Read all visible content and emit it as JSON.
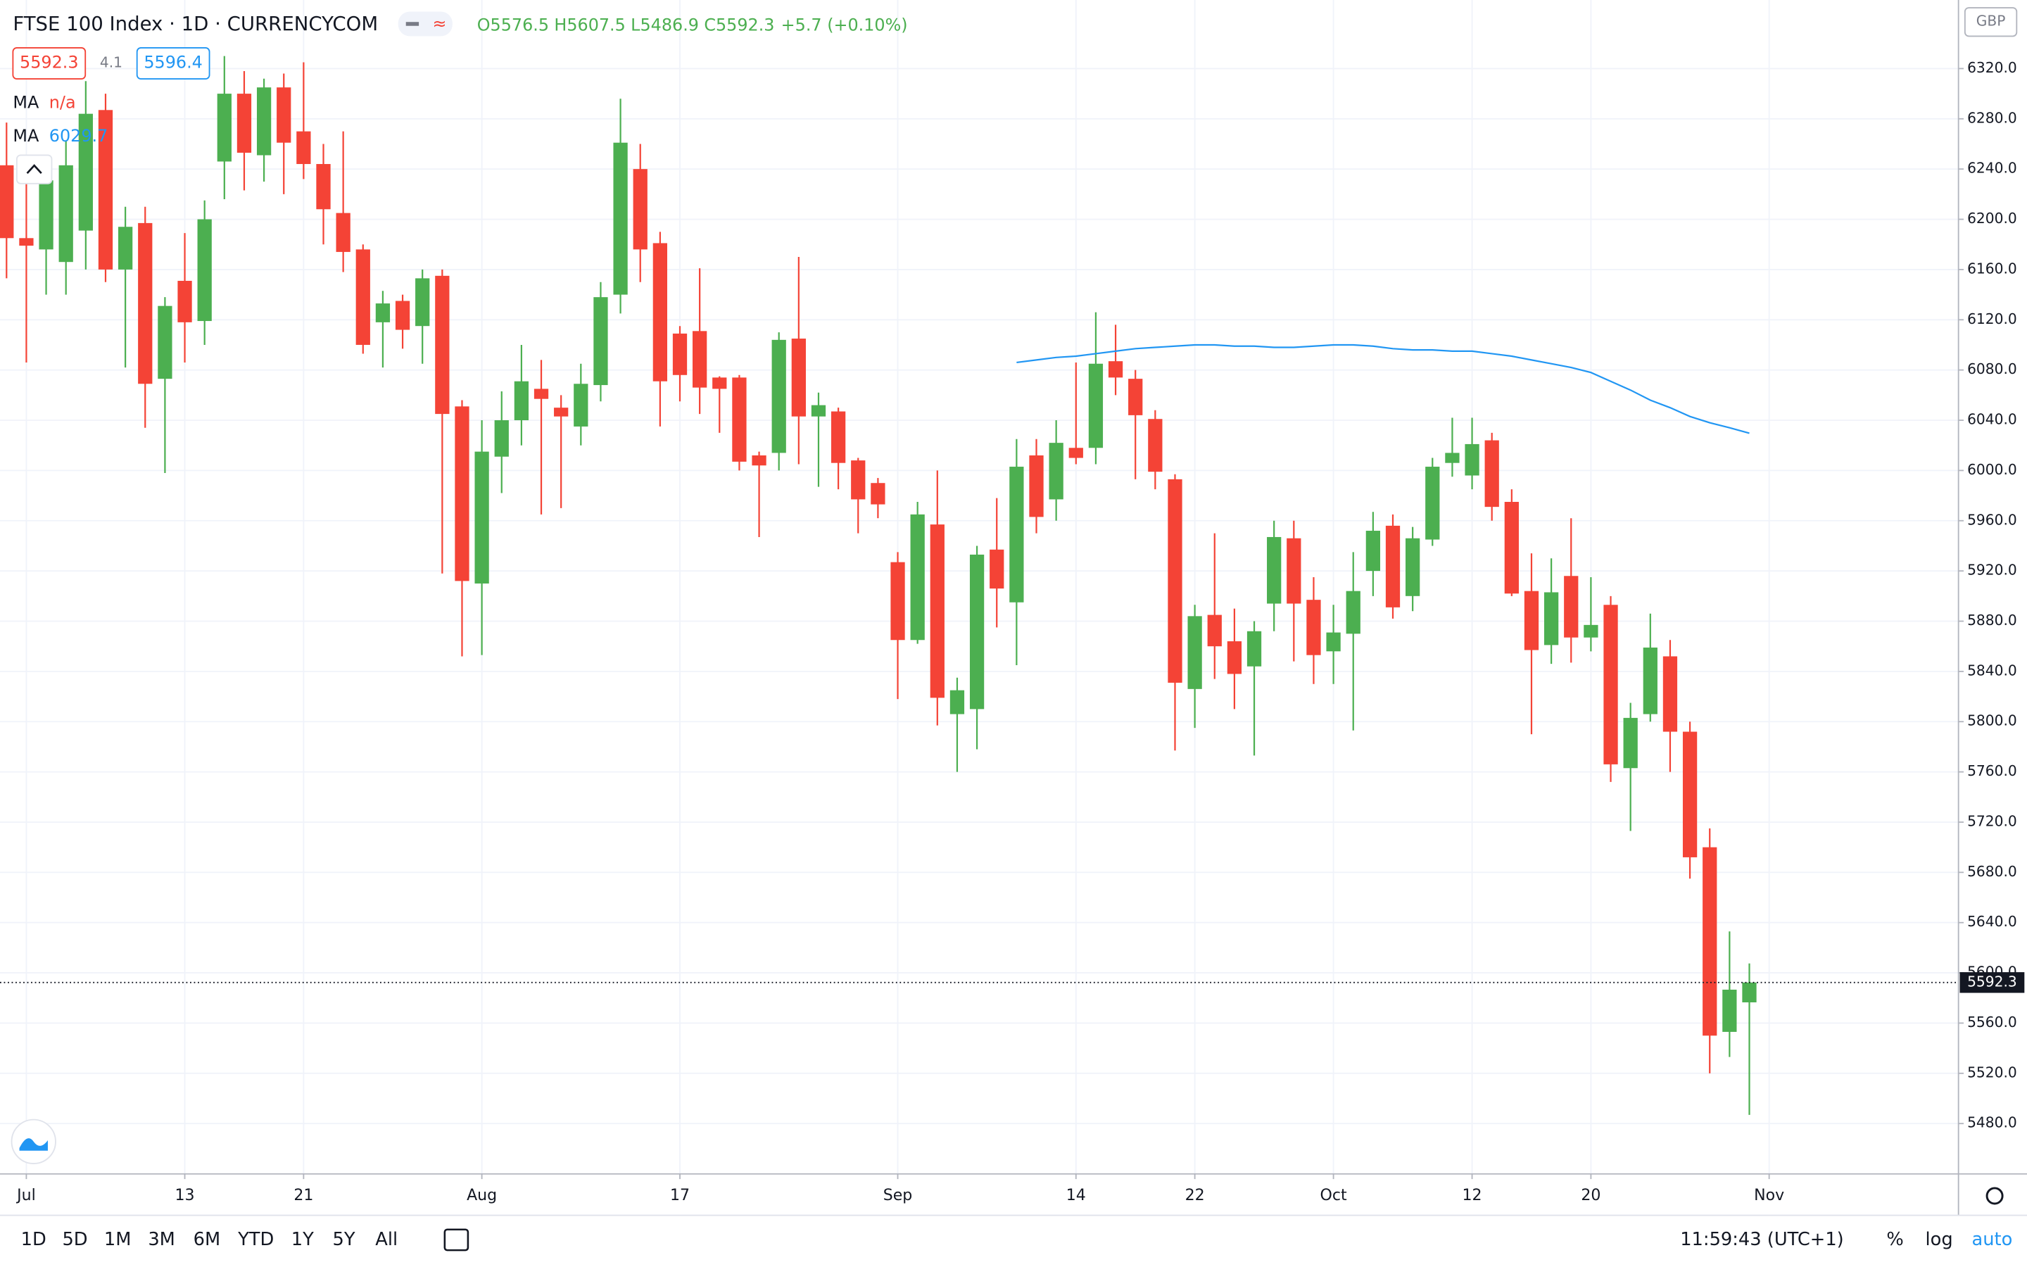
{
  "chart_data": {
    "type": "candlestick",
    "title": "FTSE 100 Index · 1D · CURRENCYCOM",
    "currency": "GBP",
    "up_color": "#4caf50",
    "down_color": "#f44336",
    "xlim": [
      -0.33,
      98.56
    ],
    "xticks": [
      {
        "value": 1,
        "label": "Jul"
      },
      {
        "value": 9,
        "label": "13"
      },
      {
        "value": 15,
        "label": "21"
      },
      {
        "value": 24,
        "label": "Aug"
      },
      {
        "value": 34,
        "label": "17"
      },
      {
        "value": 45,
        "label": "Sep"
      },
      {
        "value": 54,
        "label": "14"
      },
      {
        "value": 60,
        "label": "22"
      },
      {
        "value": 67,
        "label": "Oct"
      },
      {
        "value": 74,
        "label": "12"
      },
      {
        "value": 80,
        "label": "20"
      },
      {
        "value": 89,
        "label": "Nov"
      }
    ],
    "ylim": [
      5439.9,
      6374.6
    ],
    "yticks": [
      {
        "value": 5480,
        "label": "5480.0"
      },
      {
        "value": 5520,
        "label": "5520.0"
      },
      {
        "value": 5560,
        "label": "5560.0"
      },
      {
        "value": 5600,
        "label": "5600.0"
      },
      {
        "value": 5640,
        "label": "5640.0"
      },
      {
        "value": 5680,
        "label": "5680.0"
      },
      {
        "value": 5720,
        "label": "5720.0"
      },
      {
        "value": 5760,
        "label": "5760.0"
      },
      {
        "value": 5800,
        "label": "5800.0"
      },
      {
        "value": 5840,
        "label": "5840.0"
      },
      {
        "value": 5880,
        "label": "5880.0"
      },
      {
        "value": 5920,
        "label": "5920.0"
      },
      {
        "value": 5960,
        "label": "5960.0"
      },
      {
        "value": 6000,
        "label": "6000.0"
      },
      {
        "value": 6040,
        "label": "6040.0"
      },
      {
        "value": 6080,
        "label": "6080.0"
      },
      {
        "value": 6120,
        "label": "6120.0"
      },
      {
        "value": 6160,
        "label": "6160.0"
      },
      {
        "value": 6200,
        "label": "6200.0"
      },
      {
        "value": 6240,
        "label": "6240.0"
      },
      {
        "value": 6280,
        "label": "6280.0"
      },
      {
        "value": 6320,
        "label": "6320.0"
      }
    ],
    "grid": true,
    "open": [
      6243,
      6185,
      6176,
      6166,
      6191,
      6287,
      6160,
      6197,
      6073,
      6151,
      6119,
      6246,
      6300,
      6251,
      6305,
      6270,
      6244,
      6205,
      6176,
      6118,
      6135,
      6115,
      6155,
      6051,
      5910,
      6011,
      6040,
      6065,
      6050,
      6035,
      6068,
      6140,
      6240,
      6181,
      6109,
      6111,
      6074,
      6074,
      6012,
      6014,
      6105,
      6043,
      6047,
      6008,
      5990,
      5927,
      5865,
      5957,
      5806,
      5810,
      5937,
      5895,
      6012,
      5977,
      6018,
      6018,
      6087,
      6073,
      6041,
      5993,
      5826,
      5885,
      5864,
      5844,
      5894,
      5946,
      5897,
      5856,
      5870,
      5920,
      5956,
      5900,
      5945,
      6006,
      5996,
      6024,
      5975,
      5904,
      5861,
      5916,
      5867,
      5893,
      5763,
      5806,
      5852,
      5792,
      5700,
      5553,
      5576.5
    ],
    "high": [
      6277,
      6230,
      6251,
      6262,
      6310,
      6300,
      6210,
      6210,
      6138,
      6189,
      6215,
      6330,
      6318,
      6312,
      6316,
      6325,
      6260,
      6270,
      6180,
      6143,
      6140,
      6160,
      6160,
      6056,
      6040,
      6063,
      6100,
      6088,
      6060,
      6085,
      6150,
      6296,
      6260,
      6190,
      6115,
      6161,
      6075,
      6076,
      6015,
      6110,
      6170,
      6062,
      6050,
      6010,
      5994,
      5935,
      5975,
      6000,
      5835,
      5940,
      5978,
      6025,
      6025,
      6040,
      6086,
      6126,
      6116,
      6080,
      6048,
      5997,
      5893,
      5950,
      5890,
      5880,
      5960,
      5960,
      5915,
      5893,
      5935,
      5967,
      5965,
      5955,
      6010,
      6042,
      6042,
      6030,
      5985,
      5934,
      5930,
      5962,
      5915,
      5900,
      5815,
      5886,
      5865,
      5800,
      5715,
      5633,
      5607.5
    ],
    "low": [
      6153,
      6086,
      6140,
      6140,
      6160,
      6150,
      6082,
      6034,
      5998,
      6086,
      6100,
      6216,
      6223,
      6230,
      6220,
      6232,
      6180,
      6158,
      6093,
      6082,
      6097,
      6085,
      5918,
      5852,
      5853,
      5982,
      6020,
      5965,
      5970,
      6020,
      6055,
      6125,
      6150,
      6035,
      6055,
      6045,
      6030,
      6000,
      5947,
      6000,
      6005,
      5987,
      5985,
      5950,
      5962,
      5818,
      5862,
      5797,
      5760,
      5778,
      5875,
      5845,
      5950,
      5960,
      6005,
      6005,
      6060,
      5993,
      5985,
      5777,
      5795,
      5834,
      5810,
      5773,
      5872,
      5848,
      5830,
      5830,
      5793,
      5900,
      5882,
      5888,
      5940,
      5995,
      5985,
      5960,
      5900,
      5790,
      5846,
      5847,
      5856,
      5752,
      5713,
      5800,
      5760,
      5675,
      5520,
      5533,
      5486.9
    ],
    "close": [
      6185,
      6179,
      6231,
      6243,
      6284,
      6160,
      6194,
      6069,
      6131,
      6118,
      6200,
      6300,
      6253,
      6305,
      6261,
      6244,
      6208,
      6174,
      6100,
      6133,
      6112,
      6153,
      6045,
      5912,
      6015,
      6040,
      6071,
      6057,
      6043,
      6069,
      6138,
      6261,
      6176,
      6071,
      6076,
      6066,
      6065,
      6007,
      6004,
      6104,
      6043,
      6052,
      6006,
      5977,
      5973,
      5865,
      5965,
      5819,
      5825,
      5933,
      5906,
      6003,
      5963,
      6022,
      6010,
      6085,
      6074,
      6044,
      5999,
      5831,
      5884,
      5860,
      5838,
      5872,
      5947,
      5894,
      5853,
      5871,
      5904,
      5952,
      5891,
      5946,
      6003,
      6014,
      6021,
      5971,
      5902,
      5857,
      5903,
      5867,
      5877,
      5766,
      5803,
      5859,
      5792,
      5692,
      5550,
      5586.6,
      5592.3
    ],
    "series": [
      {
        "name": "MA",
        "color": "#2196f3",
        "values": [
          null,
          null,
          null,
          null,
          null,
          null,
          null,
          null,
          null,
          null,
          null,
          null,
          null,
          null,
          null,
          null,
          null,
          null,
          null,
          null,
          null,
          null,
          null,
          null,
          null,
          null,
          null,
          null,
          null,
          null,
          null,
          null,
          null,
          null,
          null,
          null,
          null,
          null,
          null,
          null,
          null,
          null,
          null,
          null,
          null,
          null,
          null,
          null,
          null,
          null,
          null,
          6086,
          6088,
          6090,
          6091,
          6093,
          6095,
          6097,
          6098,
          6099,
          6100,
          6100,
          6099,
          6099,
          6098,
          6098,
          6099,
          6100,
          6100,
          6099,
          6097,
          6096,
          6096,
          6095,
          6095,
          6093,
          6091,
          6088,
          6085,
          6082,
          6078,
          6071,
          6064,
          6056,
          6050,
          6043,
          6038,
          6034,
          6029.7
        ]
      }
    ]
  },
  "ui": {
    "ohlc_labels": [
      "O",
      "H",
      "L",
      "C"
    ],
    "change": "+5.7 (+0.10%)",
    "spread": 4.1,
    "ask": 5596.4,
    "indicator": {
      "name": "MA",
      "status": "n/a"
    },
    "ranges": [
      "1D",
      "5D",
      "1M",
      "3M",
      "6M",
      "YTD",
      "1Y",
      "5Y",
      "All"
    ],
    "clock": "11:59:43 (UTC+1)",
    "percent": "%",
    "log": "log",
    "auto": "auto"
  }
}
